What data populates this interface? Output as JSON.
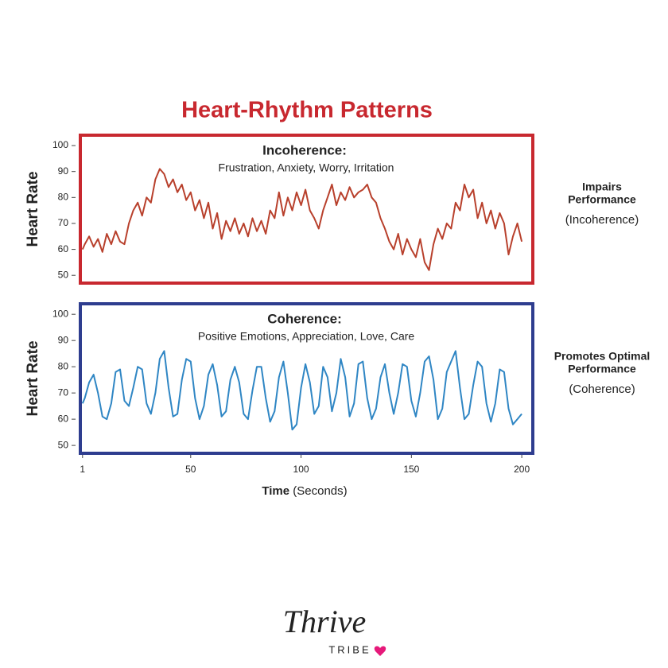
{
  "title": "Heart-Rhythm Patterns",
  "chart_data": [
    {
      "type": "line",
      "title": "Incoherence:",
      "subtitle": "Frustration, Anxiety, Worry, Irritation",
      "ylabel": "Heart Rate",
      "annotation": [
        "Impairs",
        "Performance"
      ],
      "annotation_note": "(Incoherence)",
      "frame_color": "#c8282f",
      "xlim": [
        0,
        205
      ],
      "ylim": [
        47,
        104
      ],
      "yticks": [
        50,
        60,
        70,
        80,
        90,
        100
      ],
      "x": [
        1,
        2,
        4,
        6,
        8,
        10,
        12,
        14,
        16,
        18,
        20,
        22,
        24,
        26,
        28,
        30,
        32,
        34,
        36,
        38,
        40,
        42,
        44,
        46,
        48,
        50,
        52,
        54,
        56,
        58,
        60,
        62,
        64,
        66,
        68,
        70,
        72,
        74,
        76,
        78,
        80,
        82,
        84,
        86,
        88,
        90,
        92,
        94,
        96,
        98,
        100,
        102,
        104,
        106,
        108,
        110,
        112,
        114,
        116,
        118,
        120,
        122,
        124,
        126,
        128,
        130,
        132,
        134,
        136,
        138,
        140,
        142,
        144,
        146,
        148,
        150,
        152,
        154,
        156,
        158,
        160,
        162,
        164,
        166,
        168,
        170,
        172,
        174,
        176,
        178,
        180,
        182,
        184,
        186,
        188,
        190,
        192,
        194,
        196,
        198,
        200
      ],
      "series": [
        {
          "color": "#b8402c",
          "values": [
            60,
            62,
            65,
            61,
            64,
            59,
            66,
            62,
            67,
            63,
            62,
            70,
            75,
            78,
            73,
            80,
            78,
            87,
            91,
            89,
            84,
            87,
            82,
            85,
            79,
            82,
            75,
            79,
            72,
            78,
            68,
            74,
            64,
            71,
            67,
            72,
            66,
            70,
            65,
            72,
            67,
            71,
            66,
            75,
            72,
            82,
            73,
            80,
            75,
            82,
            77,
            83,
            75,
            72,
            68,
            75,
            80,
            85,
            77,
            82,
            79,
            84,
            80,
            82,
            83,
            85,
            80,
            78,
            72,
            68,
            63,
            60,
            66,
            58,
            64,
            60,
            57,
            64,
            55,
            52,
            62,
            68,
            64,
            70,
            68,
            78,
            75,
            85,
            80,
            83,
            72,
            78,
            70,
            75,
            68,
            74,
            70,
            58,
            65,
            70,
            63
          ]
        }
      ]
    },
    {
      "type": "line",
      "title": "Coherence:",
      "subtitle": "Positive Emotions, Appreciation, Love, Care",
      "ylabel": "Heart Rate",
      "annotation": [
        "Promotes Optimal",
        "Performance"
      ],
      "annotation_note": "(Coherence)",
      "frame_color": "#2e3d8f",
      "xlabel": "Time",
      "xlabel_unit": "(Seconds)",
      "xlim": [
        0,
        205
      ],
      "xticks": [
        1,
        50,
        100,
        150,
        200
      ],
      "ylim": [
        47,
        104
      ],
      "yticks": [
        50,
        60,
        70,
        80,
        90,
        100
      ],
      "x": [
        1,
        2,
        4,
        6,
        8,
        10,
        12,
        14,
        16,
        18,
        20,
        22,
        24,
        26,
        28,
        30,
        32,
        34,
        36,
        38,
        40,
        42,
        44,
        46,
        48,
        50,
        52,
        54,
        56,
        58,
        60,
        62,
        64,
        66,
        68,
        70,
        72,
        74,
        76,
        78,
        80,
        82,
        84,
        86,
        88,
        90,
        92,
        94,
        96,
        98,
        100,
        102,
        104,
        106,
        108,
        110,
        112,
        114,
        116,
        118,
        120,
        122,
        124,
        126,
        128,
        130,
        132,
        134,
        136,
        138,
        140,
        142,
        144,
        146,
        148,
        150,
        152,
        154,
        156,
        158,
        160,
        162,
        164,
        166,
        168,
        170,
        172,
        174,
        176,
        178,
        180,
        182,
        184,
        186,
        188,
        190,
        192,
        194,
        196,
        198,
        200
      ],
      "series": [
        {
          "color": "#2f86c4",
          "values": [
            66,
            68,
            74,
            77,
            70,
            61,
            60,
            66,
            78,
            79,
            67,
            65,
            72,
            80,
            79,
            66,
            62,
            70,
            83,
            86,
            72,
            61,
            62,
            75,
            83,
            82,
            68,
            60,
            65,
            77,
            81,
            73,
            61,
            63,
            75,
            80,
            74,
            62,
            60,
            71,
            80,
            80,
            68,
            59,
            63,
            76,
            82,
            70,
            56,
            58,
            72,
            81,
            74,
            62,
            65,
            80,
            76,
            63,
            70,
            83,
            76,
            61,
            66,
            81,
            82,
            68,
            60,
            64,
            76,
            81,
            70,
            62,
            70,
            81,
            80,
            67,
            61,
            70,
            82,
            84,
            75,
            60,
            64,
            78,
            82,
            86,
            72,
            60,
            62,
            73,
            82,
            80,
            66,
            59,
            66,
            79,
            78,
            64,
            58,
            60,
            62
          ]
        }
      ]
    }
  ],
  "logo": {
    "name": "Thrive",
    "tag": "TRIBE"
  }
}
